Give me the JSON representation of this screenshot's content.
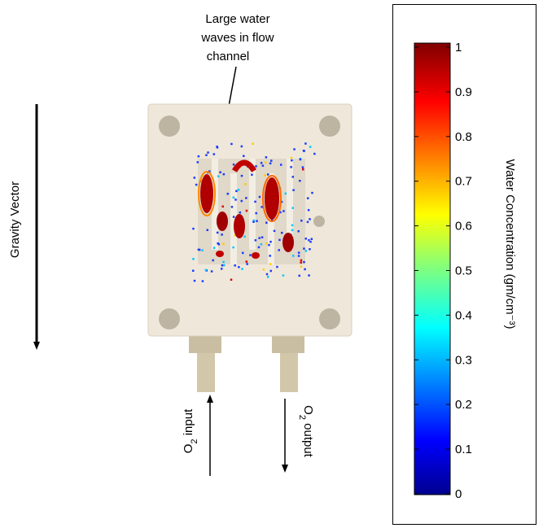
{
  "annotation": {
    "lines": [
      "Large water",
      "waves in flow",
      "channel"
    ]
  },
  "gravity_label": "Gravity Vector",
  "o2_input": {
    "main": "O",
    "sub": "2",
    "rest": " input"
  },
  "o2_output": {
    "main": "O",
    "sub": "2",
    "rest": " output"
  },
  "colorbar": {
    "label": "Water Concentration (gm/cm⁻³)",
    "range": [
      0,
      1
    ],
    "ticks": [
      0,
      0.1,
      0.2,
      0.3,
      0.4,
      0.5,
      0.6,
      0.7,
      0.8,
      0.9,
      1
    ]
  }
}
